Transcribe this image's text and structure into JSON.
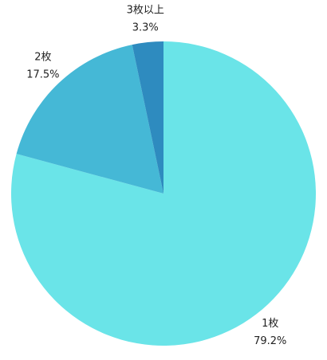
{
  "chart_data": {
    "type": "pie",
    "categories": [
      "1枚",
      "2枚",
      "3枚以上"
    ],
    "values": [
      79.2,
      17.5,
      3.3
    ],
    "value_labels": [
      "79.2%",
      "17.5%",
      "3.3%"
    ],
    "colors": [
      "#6ae4e8",
      "#45b8d6",
      "#2e8bbf"
    ]
  }
}
